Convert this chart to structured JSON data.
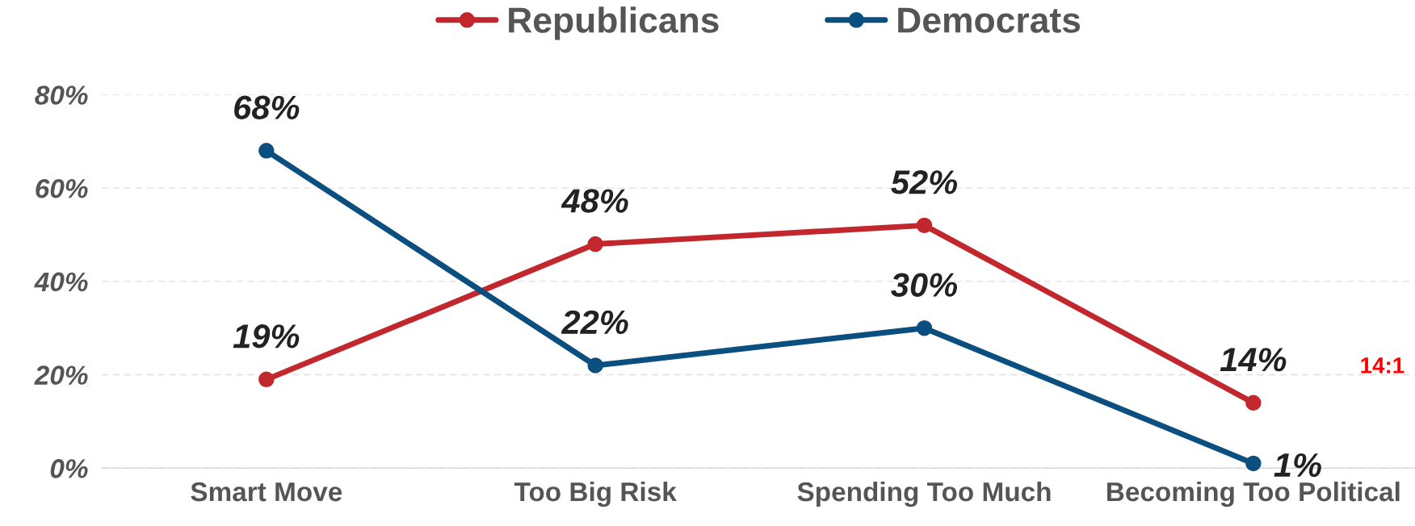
{
  "chart_data": {
    "type": "line",
    "categories": [
      "Smart Move",
      "Too Big Risk",
      "Spending Too Much",
      "Becoming Too Political"
    ],
    "series": [
      {
        "name": "Republicans",
        "color": "#c1272d",
        "values": [
          19,
          48,
          52,
          14
        ],
        "value_labels": [
          "19%",
          "48%",
          "52%",
          "14%"
        ]
      },
      {
        "name": "Democrats",
        "color": "#0b4f80",
        "values": [
          68,
          22,
          30,
          1
        ],
        "value_labels": [
          "68%",
          "22%",
          "30%",
          "1%"
        ]
      }
    ],
    "ylim": [
      0,
      80
    ],
    "yticks": [
      {
        "value": 0,
        "label": "0%"
      },
      {
        "value": 20,
        "label": "20%"
      },
      {
        "value": 40,
        "label": "40%"
      },
      {
        "value": 60,
        "label": "60%"
      },
      {
        "value": 80,
        "label": "80%"
      }
    ],
    "grid": "y",
    "legend": "top",
    "marker": "circle",
    "line_style": "solid",
    "annotations": [
      "14:1"
    ]
  }
}
